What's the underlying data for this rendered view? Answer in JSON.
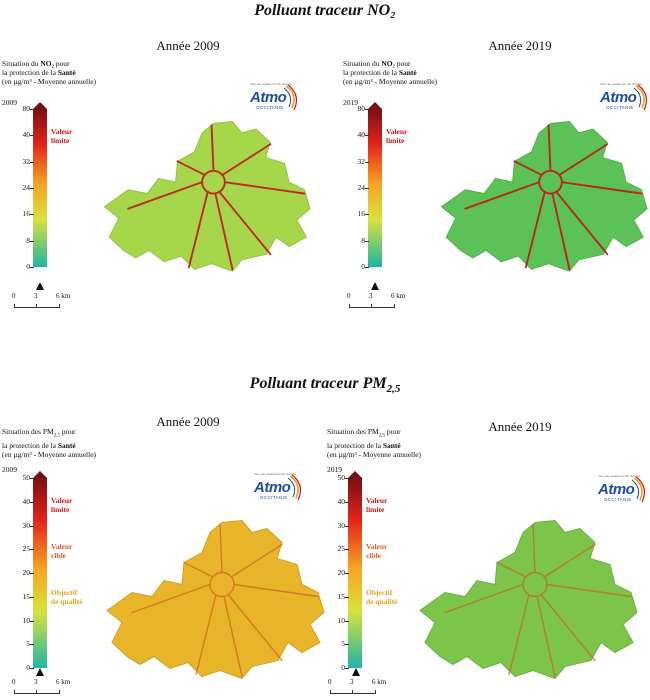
{
  "sections": [
    {
      "title": "Polluant traceur NO₂",
      "maps": [
        {
          "year_title": "Année 2009",
          "caption": {
            "line1_pre": "Situation du ",
            "line1_bold": "NO₂",
            "line1_post": " pour",
            "line2_pre": "la protection de la ",
            "line2_bold": "Santé",
            "line3": "(en µg/m³ - Moyenne annuelle)"
          },
          "year_small": "2009",
          "fill": "#a6d64a"
        },
        {
          "year_title": "Année 2019",
          "caption": {
            "line1_pre": "Situation du ",
            "line1_bold": "NO₂",
            "line1_post": " pour",
            "line2_pre": "la protection de la ",
            "line2_bold": "Santé",
            "line3": "(en µg/m³ - Moyenne annuelle)"
          },
          "year_small": "2019",
          "fill": "#5cc257"
        }
      ],
      "scale_ticks": [
        "80",
        "40",
        "32",
        "24",
        "16",
        "8",
        "0"
      ],
      "zones": [
        {
          "text": "Valeur\nlimite",
          "color": "#d2151b"
        }
      ]
    },
    {
      "title": "Polluant traceur PM",
      "title_sub": "2,5",
      "maps": [
        {
          "year_title": "Année 2009",
          "caption": {
            "line1_pre": "Situation des PM",
            "line1_bold": "",
            "line1_sub": "2,5",
            "line1_post": " pour",
            "line2_pre": "la protection de la ",
            "line2_bold": "Santé",
            "line3": "(en µg/m³ - Moyenne annuelle)"
          },
          "year_small": "2009",
          "fill": "#e8b42a"
        },
        {
          "year_title": "Année 2019",
          "caption": {
            "line1_pre": "Situation des PM",
            "line1_bold": "",
            "line1_sub": "2,5",
            "line1_post": " pour",
            "line2_pre": "la protection de la ",
            "line2_bold": "Santé",
            "line3": "(en µg/m³ - Moyenne annuelle)"
          },
          "year_small": "2019",
          "fill": "#7cc44a"
        }
      ],
      "scale_ticks": [
        "50",
        "40",
        "30",
        "25",
        "20",
        "15",
        "10",
        "5",
        "0"
      ],
      "zones": [
        {
          "text": "Valeur\nlimite",
          "color": "#d2151b"
        },
        {
          "text": "Valeur\ncible",
          "color": "#e2572a"
        },
        {
          "text": "Objectif\nde qualité",
          "color": "#e8a21a"
        }
      ]
    }
  ],
  "logo": {
    "top": "Vers une qualité de l'air durable",
    "main": "Atmo",
    "sub": "OCCITANIE"
  },
  "km_scale": [
    "0",
    "3",
    "6 km"
  ],
  "colors": {
    "ramp_top": "#7a0f14",
    "ramp_mid1": "#e2231a",
    "ramp_mid2": "#f5a623",
    "ramp_mid3": "#d8e23a",
    "ramp_bottom": "#1fb5a4"
  }
}
